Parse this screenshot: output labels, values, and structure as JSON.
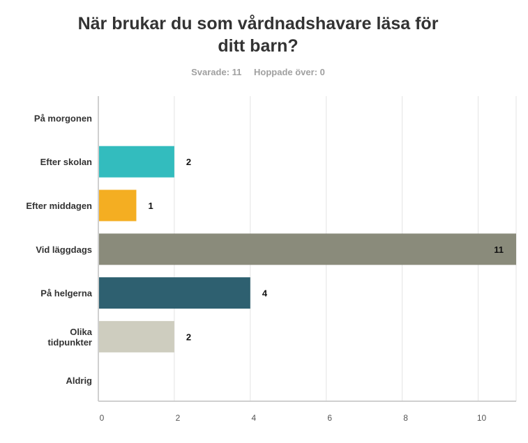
{
  "header": {
    "title_line1": "När brukar du som vårdnadshavare läsa för",
    "title_line2": "ditt barn?",
    "answered": "Svarade: 11",
    "skipped": "Hoppade över: 0"
  },
  "chart_data": {
    "type": "bar",
    "orientation": "horizontal",
    "categories": [
      [
        "På morgonen"
      ],
      [
        "Efter skolan"
      ],
      [
        "Efter middagen"
      ],
      [
        "Vid läggdags"
      ],
      [
        "På helgerna"
      ],
      [
        "Olika",
        "tidpunkter"
      ],
      [
        "Aldrig"
      ]
    ],
    "values": [
      0,
      2,
      1,
      11,
      4,
      2,
      0
    ],
    "value_labels": [
      "",
      "2",
      "1",
      "11",
      "4",
      "2",
      ""
    ],
    "colors": [
      "#3dbfbf",
      "#33bcbe",
      "#f4ae22",
      "#8a8b7b",
      "#2e6070",
      "#cecdbf",
      "#999999"
    ],
    "xticks": [
      0,
      2,
      4,
      6,
      8,
      10
    ],
    "xlim": [
      0,
      11
    ],
    "grid": true
  }
}
